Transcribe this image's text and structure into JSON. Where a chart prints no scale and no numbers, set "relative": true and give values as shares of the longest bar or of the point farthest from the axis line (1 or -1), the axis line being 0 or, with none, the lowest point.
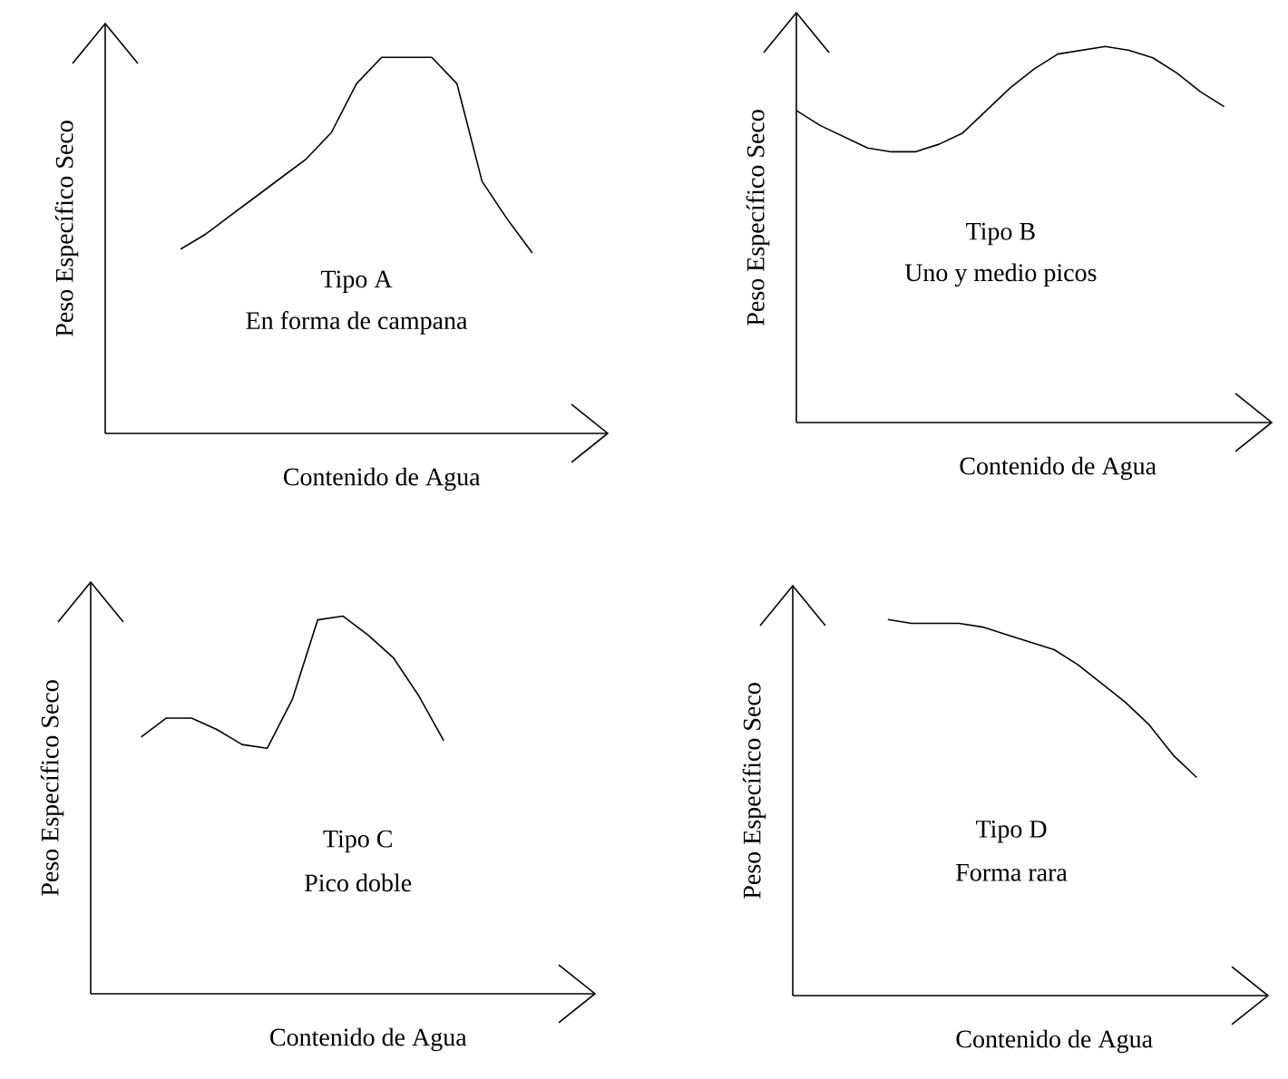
{
  "chart_data": [
    {
      "type": "line",
      "relative": true,
      "color": "#000000",
      "xlabel": "Contenido de Agua",
      "ylabel": "Peso Específico Seco",
      "annotations": [
        "Tipo A",
        "En forma de campana"
      ],
      "categories": [
        null,
        null,
        null,
        null,
        null,
        null,
        null,
        null,
        null,
        null,
        null,
        null,
        null,
        null,
        null,
        null,
        null,
        null,
        null,
        null,
        null
      ],
      "values": [
        null,
        null,
        null,
        0.49,
        0.53,
        0.58,
        0.63,
        0.68,
        0.73,
        0.8,
        0.93,
        1.0,
        1.0,
        1.0,
        0.93,
        0.67,
        0.57,
        0.48,
        null,
        null,
        null
      ]
    },
    {
      "type": "line",
      "relative": true,
      "color": "#000000",
      "xlabel": "Contenido de Agua",
      "ylabel": "Peso Específico Seco",
      "annotations": [
        "Tipo B",
        "Uno y medio picos"
      ],
      "categories": [
        null,
        null,
        null,
        null,
        null,
        null,
        null,
        null,
        null,
        null,
        null,
        null,
        null,
        null,
        null,
        null,
        null,
        null,
        null,
        null,
        null
      ],
      "values": [
        0.83,
        0.79,
        0.76,
        0.73,
        0.72,
        0.72,
        0.74,
        0.77,
        0.83,
        0.89,
        0.94,
        0.98,
        0.99,
        1.0,
        0.99,
        0.97,
        0.93,
        0.88,
        0.84,
        null,
        null
      ]
    },
    {
      "type": "line",
      "relative": true,
      "color": "#000000",
      "xlabel": "Contenido de Agua",
      "ylabel": "Peso Específico Seco",
      "annotations": [
        "Tipo C",
        "Pico doble"
      ],
      "categories": [
        null,
        null,
        null,
        null,
        null,
        null,
        null,
        null,
        null,
        null,
        null,
        null,
        null,
        null,
        null,
        null,
        null,
        null,
        null,
        null,
        null
      ],
      "values": [
        null,
        null,
        0.68,
        0.73,
        0.73,
        0.7,
        0.66,
        0.65,
        0.78,
        0.99,
        1.0,
        0.95,
        0.89,
        0.79,
        0.67,
        null,
        null,
        null,
        null,
        null,
        null
      ]
    },
    {
      "type": "line",
      "relative": true,
      "color": "#000000",
      "xlabel": "Contenido de Agua",
      "ylabel": "Peso Específico Seco",
      "annotations": [
        "Tipo D",
        "Forma rara"
      ],
      "categories": [
        null,
        null,
        null,
        null,
        null,
        null,
        null,
        null,
        null,
        null,
        null,
        null,
        null,
        null,
        null,
        null,
        null,
        null,
        null,
        null,
        null
      ],
      "values": [
        null,
        null,
        null,
        null,
        1.0,
        0.99,
        0.99,
        0.99,
        0.98,
        0.96,
        0.94,
        0.92,
        0.88,
        0.83,
        0.78,
        0.72,
        0.64,
        0.58,
        null,
        null,
        null
      ]
    }
  ]
}
